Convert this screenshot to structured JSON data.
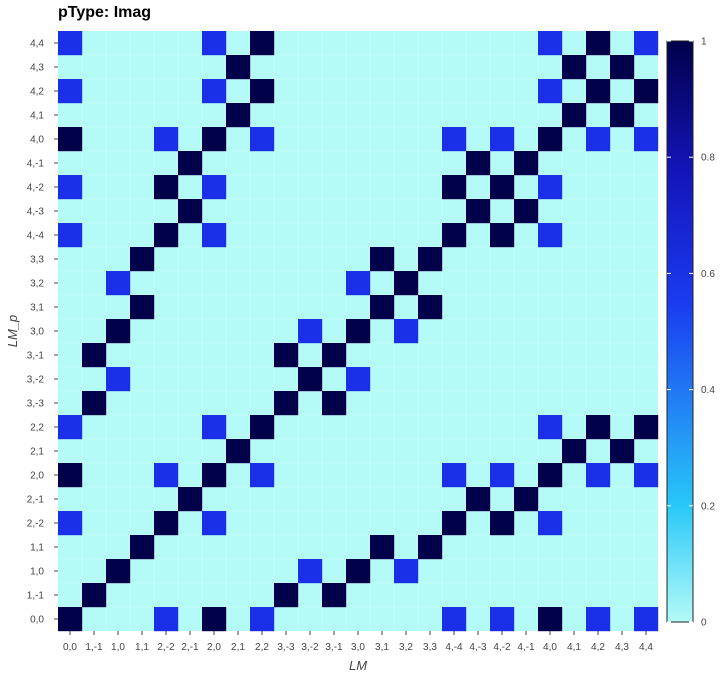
{
  "chart_data": {
    "type": "heatmap",
    "title": "pType: Imag",
    "xlabel": "LM",
    "ylabel": "LM_p",
    "labels": [
      "0,0",
      "1,-1",
      "1,0",
      "1,1",
      "2,-2",
      "2,-1",
      "2,0",
      "2,1",
      "2,2",
      "3,-3",
      "3,-2",
      "3,-1",
      "3,0",
      "3,1",
      "3,2",
      "3,3",
      "4,-4",
      "4,-3",
      "4,-2",
      "4,-1",
      "4,0",
      "4,1",
      "4,2",
      "4,3",
      "4,4"
    ],
    "colorbar": {
      "min": 0,
      "max": 1,
      "ticks": [
        "0",
        "0.2",
        "0.4",
        "0.6",
        "0.8",
        "1"
      ]
    },
    "colors": {
      "low": "#b4fbf7",
      "mid": "#29c8f8",
      "high_mid": "#1a30e8",
      "high": "#00004a"
    },
    "cells": [
      [
        0,
        0,
        1
      ],
      [
        0,
        4,
        0.7
      ],
      [
        0,
        6,
        1
      ],
      [
        0,
        8,
        0.7
      ],
      [
        0,
        16,
        0.7
      ],
      [
        0,
        18,
        0.7
      ],
      [
        0,
        20,
        1
      ],
      [
        0,
        22,
        0.7
      ],
      [
        0,
        24,
        0.7
      ],
      [
        1,
        1,
        1
      ],
      [
        1,
        9,
        1
      ],
      [
        1,
        11,
        1
      ],
      [
        2,
        2,
        1
      ],
      [
        2,
        10,
        0.7
      ],
      [
        2,
        12,
        1
      ],
      [
        2,
        14,
        0.7
      ],
      [
        3,
        3,
        1
      ],
      [
        3,
        13,
        1
      ],
      [
        3,
        15,
        1
      ],
      [
        4,
        0,
        0.7
      ],
      [
        4,
        4,
        1
      ],
      [
        4,
        6,
        0.7
      ],
      [
        4,
        16,
        1
      ],
      [
        4,
        18,
        1
      ],
      [
        4,
        20,
        0.7
      ],
      [
        5,
        5,
        1
      ],
      [
        5,
        17,
        1
      ],
      [
        5,
        19,
        1
      ],
      [
        6,
        0,
        1
      ],
      [
        6,
        4,
        0.7
      ],
      [
        6,
        6,
        1
      ],
      [
        6,
        8,
        0.7
      ],
      [
        6,
        16,
        0.7
      ],
      [
        6,
        18,
        0.7
      ],
      [
        6,
        20,
        1
      ],
      [
        6,
        22,
        0.7
      ],
      [
        6,
        24,
        0.7
      ],
      [
        7,
        7,
        1
      ],
      [
        7,
        21,
        1
      ],
      [
        7,
        23,
        1
      ],
      [
        8,
        0,
        0.7
      ],
      [
        8,
        6,
        0.7
      ],
      [
        8,
        8,
        1
      ],
      [
        8,
        20,
        0.7
      ],
      [
        8,
        22,
        1
      ],
      [
        8,
        24,
        1
      ],
      [
        9,
        1,
        1
      ],
      [
        9,
        9,
        1
      ],
      [
        9,
        11,
        1
      ],
      [
        10,
        2,
        0.7
      ],
      [
        10,
        10,
        1
      ],
      [
        10,
        12,
        0.7
      ],
      [
        11,
        1,
        1
      ],
      [
        11,
        9,
        1
      ],
      [
        11,
        11,
        1
      ],
      [
        12,
        2,
        1
      ],
      [
        12,
        10,
        0.7
      ],
      [
        12,
        12,
        1
      ],
      [
        12,
        14,
        0.7
      ],
      [
        13,
        3,
        1
      ],
      [
        13,
        13,
        1
      ],
      [
        13,
        15,
        1
      ],
      [
        14,
        2,
        0.7
      ],
      [
        14,
        12,
        0.7
      ],
      [
        14,
        14,
        1
      ],
      [
        15,
        3,
        1
      ],
      [
        15,
        13,
        1
      ],
      [
        15,
        15,
        1
      ],
      [
        16,
        0,
        0.7
      ],
      [
        16,
        4,
        1
      ],
      [
        16,
        6,
        0.7
      ],
      [
        16,
        16,
        1
      ],
      [
        16,
        18,
        1
      ],
      [
        16,
        20,
        0.7
      ],
      [
        17,
        5,
        1
      ],
      [
        17,
        17,
        1
      ],
      [
        17,
        19,
        1
      ],
      [
        18,
        0,
        0.7
      ],
      [
        18,
        4,
        1
      ],
      [
        18,
        6,
        0.7
      ],
      [
        18,
        16,
        1
      ],
      [
        18,
        18,
        1
      ],
      [
        18,
        20,
        0.7
      ],
      [
        19,
        5,
        1
      ],
      [
        19,
        17,
        1
      ],
      [
        19,
        19,
        1
      ],
      [
        20,
        0,
        1
      ],
      [
        20,
        4,
        0.7
      ],
      [
        20,
        6,
        1
      ],
      [
        20,
        8,
        0.7
      ],
      [
        20,
        16,
        0.7
      ],
      [
        20,
        18,
        0.7
      ],
      [
        20,
        20,
        1
      ],
      [
        20,
        22,
        0.7
      ],
      [
        20,
        24,
        0.7
      ],
      [
        21,
        7,
        1
      ],
      [
        21,
        21,
        1
      ],
      [
        21,
        23,
        1
      ],
      [
        22,
        0,
        0.7
      ],
      [
        22,
        6,
        0.7
      ],
      [
        22,
        8,
        1
      ],
      [
        22,
        20,
        0.7
      ],
      [
        22,
        22,
        1
      ],
      [
        22,
        24,
        1
      ],
      [
        23,
        7,
        1
      ],
      [
        23,
        21,
        1
      ],
      [
        23,
        23,
        1
      ],
      [
        24,
        0,
        0.7
      ],
      [
        24,
        6,
        0.7
      ],
      [
        24,
        8,
        1
      ],
      [
        24,
        20,
        0.7
      ],
      [
        24,
        22,
        1
      ],
      [
        24,
        24,
        0.7
      ]
    ]
  }
}
